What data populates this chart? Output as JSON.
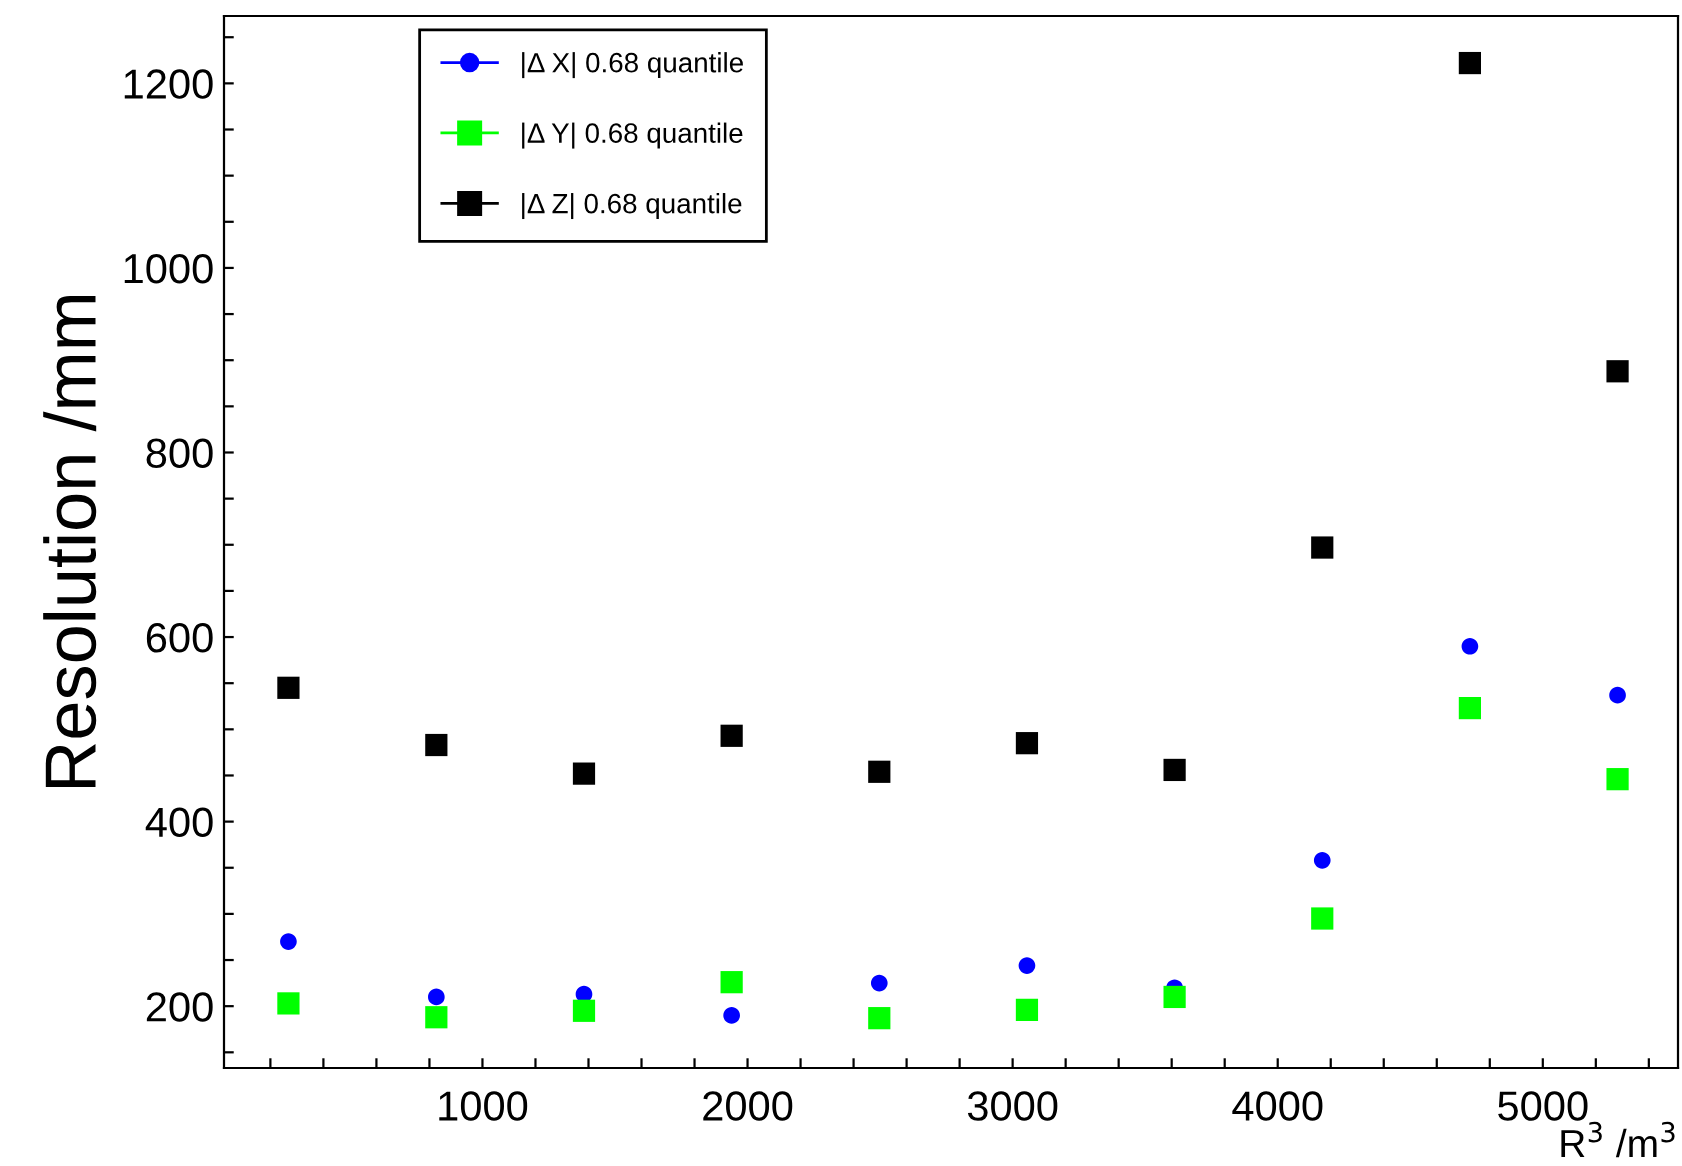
{
  "chart_data": {
    "type": "scatter",
    "xlabel": "R$^{3}$ /m$^{3}$",
    "ylabel": "Resolution /mm",
    "x": [
      268,
      826,
      1383,
      1940,
      2497,
      3054,
      3611,
      4168,
      4725,
      5282
    ],
    "xlim": [
      25,
      5510
    ],
    "ylim": [
      133,
      1273
    ],
    "xticks": [
      {
        "value": 200,
        "label": null
      },
      {
        "value": 400,
        "label": null
      },
      {
        "value": 600,
        "label": null
      },
      {
        "value": 800,
        "label": null
      },
      1000,
      {
        "value": 1200,
        "label": null
      },
      {
        "value": 1400,
        "label": null
      },
      {
        "value": 1600,
        "label": null
      },
      {
        "value": 1800,
        "label": null
      },
      2000,
      {
        "value": 2200,
        "label": null
      },
      {
        "value": 2400,
        "label": null
      },
      {
        "value": 2600,
        "label": null
      },
      {
        "value": 2800,
        "label": null
      },
      3000,
      {
        "value": 3200,
        "label": null
      },
      {
        "value": 3400,
        "label": null
      },
      {
        "value": 3600,
        "label": null
      },
      {
        "value": 3800,
        "label": null
      },
      4000,
      {
        "value": 4200,
        "label": null
      },
      {
        "value": 4400,
        "label": null
      },
      {
        "value": 4600,
        "label": null
      },
      {
        "value": 4800,
        "label": null
      },
      5000,
      {
        "value": 5200,
        "label": null
      },
      {
        "value": 5400,
        "label": null
      }
    ],
    "yticks": [
      {
        "value": 150,
        "label": null
      },
      200,
      {
        "value": 250,
        "label": null
      },
      {
        "value": 300,
        "label": null
      },
      {
        "value": 350,
        "label": null
      },
      400,
      {
        "value": 450,
        "label": null
      },
      {
        "value": 500,
        "label": null
      },
      {
        "value": 550,
        "label": null
      },
      600,
      {
        "value": 650,
        "label": null
      },
      {
        "value": 700,
        "label": null
      },
      {
        "value": 750,
        "label": null
      },
      800,
      {
        "value": 850,
        "label": null
      },
      {
        "value": 900,
        "label": null
      },
      {
        "value": 950,
        "label": null
      },
      1000,
      {
        "value": 1050,
        "label": null
      },
      {
        "value": 1100,
        "label": null
      },
      {
        "value": 1150,
        "label": null
      },
      1200,
      {
        "value": 1250,
        "label": null
      }
    ],
    "legend": "top left",
    "series": [
      {
        "name": "|Δ X| 0.68 quantile",
        "color": "#0000ff",
        "marker": "circle",
        "values": [
          270,
          210,
          213,
          190,
          225,
          244,
          220,
          358,
          590,
          537
        ]
      },
      {
        "name": "|Δ Y| 0.68 quantile",
        "color": "#00ff00",
        "marker": "square",
        "values": [
          203,
          188,
          195,
          226,
          187,
          196,
          210,
          295,
          523,
          446
        ]
      },
      {
        "name": "|Δ Z| 0.68 quantile",
        "color": "#000000",
        "marker": "square",
        "values": [
          545,
          483,
          452,
          493,
          454,
          485,
          456,
          697,
          1222,
          888
        ]
      }
    ]
  }
}
